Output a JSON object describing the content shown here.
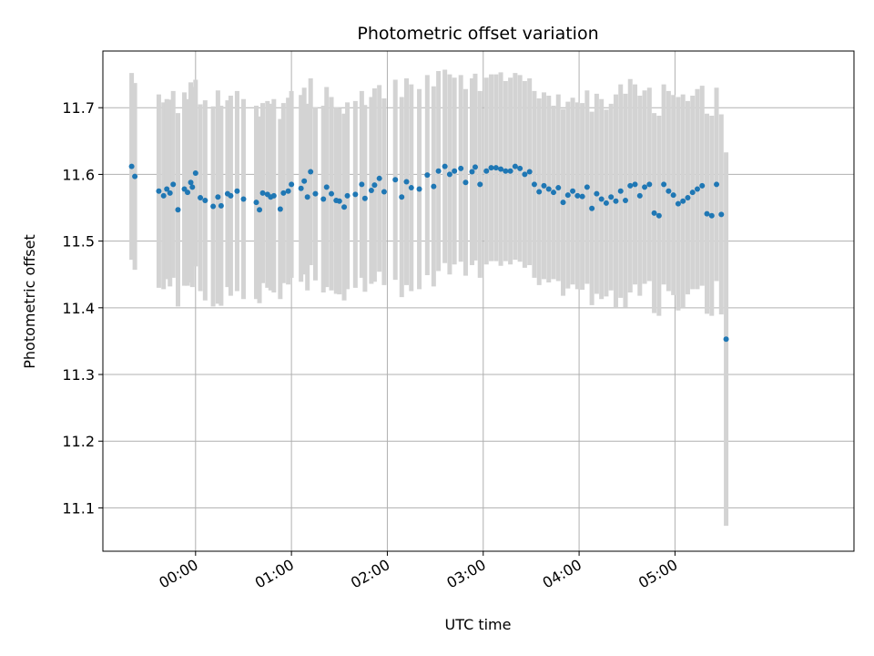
{
  "chart_data": {
    "type": "scatter",
    "title": "Photometric offset variation",
    "xlabel": "UTC time",
    "ylabel": "Photometric offset",
    "x_axis_type": "time",
    "xlim": [
      "-00:58",
      "06:52"
    ],
    "ylim": [
      11.035,
      11.785
    ],
    "x_ticks": [
      "00:00",
      "01:00",
      "02:00",
      "03:00",
      "04:00",
      "05:00"
    ],
    "y_ticks": [
      11.1,
      11.2,
      11.3,
      11.4,
      11.5,
      11.6,
      11.7
    ],
    "grid": true,
    "legend": "none",
    "colors": {
      "marker": "#1f77b4",
      "error_bar": "#d3d3d3",
      "grid": "#b0b0b0",
      "axes": "#000000"
    },
    "series": [
      {
        "x": [
          "-00:40",
          "-00:38",
          "-00:23",
          "-00:20",
          "-00:18",
          "-00:16",
          "-00:14",
          "-00:11",
          "-00:07",
          "-00:05",
          "-00:03",
          "-00:02",
          "00:00",
          "00:03",
          "00:06",
          "00:11",
          "00:14",
          "00:16",
          "00:20",
          "00:22",
          "00:26",
          "00:30",
          "00:38",
          "00:40",
          "00:42",
          "00:45",
          "00:47",
          "00:49",
          "00:53",
          "00:55",
          "00:58",
          "01:00",
          "01:06",
          "01:08",
          "01:10",
          "01:12",
          "01:15",
          "01:20",
          "01:22",
          "01:25",
          "01:28",
          "01:30",
          "01:33",
          "01:35",
          "01:40",
          "01:44",
          "01:46",
          "01:50",
          "01:52",
          "01:55",
          "01:58",
          "02:05",
          "02:09",
          "02:12",
          "02:15",
          "02:20",
          "02:25",
          "02:29",
          "02:32",
          "02:36",
          "02:39",
          "02:42",
          "02:46",
          "02:49",
          "02:53",
          "02:55",
          "02:58",
          "03:02",
          "03:05",
          "03:08",
          "03:11",
          "03:14",
          "03:17",
          "03:20",
          "03:23",
          "03:26",
          "03:29",
          "03:32",
          "03:35",
          "03:38",
          "03:41",
          "03:44",
          "03:47",
          "03:50",
          "03:53",
          "03:56",
          "03:59",
          "04:02",
          "04:05",
          "04:08",
          "04:11",
          "04:14",
          "04:17",
          "04:20",
          "04:23",
          "04:26",
          "04:29",
          "04:32",
          "04:35",
          "04:38",
          "04:41",
          "04:44",
          "04:47",
          "04:50",
          "04:53",
          "04:56",
          "04:59",
          "05:02",
          "05:05",
          "05:08",
          "05:11",
          "05:14",
          "05:17",
          "05:20",
          "05:23",
          "05:26",
          "05:29",
          "05:32"
        ],
        "y": [
          11.612,
          11.597,
          11.575,
          11.568,
          11.578,
          11.572,
          11.585,
          11.547,
          11.578,
          11.573,
          11.588,
          11.581,
          11.602,
          11.565,
          11.561,
          11.552,
          11.566,
          11.553,
          11.571,
          11.568,
          11.575,
          11.563,
          11.558,
          11.547,
          11.572,
          11.57,
          11.566,
          11.568,
          11.548,
          11.572,
          11.575,
          11.585,
          11.579,
          11.59,
          11.566,
          11.604,
          11.571,
          11.563,
          11.581,
          11.571,
          11.561,
          11.56,
          11.551,
          11.568,
          11.57,
          11.585,
          11.564,
          11.576,
          11.584,
          11.594,
          11.574,
          11.592,
          11.566,
          11.589,
          11.58,
          11.578,
          11.599,
          11.582,
          11.605,
          11.612,
          11.6,
          11.605,
          11.609,
          11.588,
          11.604,
          11.611,
          11.585,
          11.605,
          11.61,
          11.61,
          11.608,
          11.605,
          11.605,
          11.612,
          11.609,
          11.6,
          11.604,
          11.585,
          11.574,
          11.583,
          11.578,
          11.573,
          11.58,
          11.558,
          11.569,
          11.575,
          11.568,
          11.567,
          11.581,
          11.549,
          11.571,
          11.563,
          11.557,
          11.566,
          11.56,
          11.575,
          11.561,
          11.583,
          11.585,
          11.568,
          11.581,
          11.585,
          11.542,
          11.538,
          11.585,
          11.575,
          11.569,
          11.556,
          11.56,
          11.565,
          11.573,
          11.578,
          11.583,
          11.541,
          11.538,
          11.585,
          11.54,
          11.353
        ],
        "err": [
          0.14,
          0.14,
          0.145,
          0.14,
          0.135,
          0.14,
          0.14,
          0.145,
          0.145,
          0.14,
          0.15,
          0.15,
          0.14,
          0.14,
          0.15,
          0.15,
          0.16,
          0.15,
          0.14,
          0.15,
          0.15,
          0.15,
          0.145,
          0.14,
          0.135,
          0.14,
          0.14,
          0.145,
          0.135,
          0.135,
          0.14,
          0.14,
          0.14,
          0.14,
          0.14,
          0.14,
          0.13,
          0.14,
          0.15,
          0.145,
          0.14,
          0.14,
          0.14,
          0.14,
          0.14,
          0.14,
          0.14,
          0.14,
          0.145,
          0.14,
          0.14,
          0.15,
          0.15,
          0.155,
          0.155,
          0.15,
          0.15,
          0.15,
          0.15,
          0.145,
          0.15,
          0.14,
          0.14,
          0.14,
          0.14,
          0.14,
          0.14,
          0.14,
          0.14,
          0.14,
          0.145,
          0.135,
          0.14,
          0.14,
          0.14,
          0.14,
          0.14,
          0.14,
          0.14,
          0.14,
          0.14,
          0.13,
          0.14,
          0.14,
          0.14,
          0.14,
          0.14,
          0.14,
          0.145,
          0.145,
          0.15,
          0.15,
          0.14,
          0.14,
          0.16,
          0.16,
          0.16,
          0.16,
          0.15,
          0.15,
          0.145,
          0.145,
          0.15,
          0.15,
          0.15,
          0.15,
          0.15,
          0.16,
          0.16,
          0.145,
          0.145,
          0.15,
          0.15,
          0.15,
          0.15,
          0.145,
          0.15,
          0.28
        ]
      }
    ]
  }
}
